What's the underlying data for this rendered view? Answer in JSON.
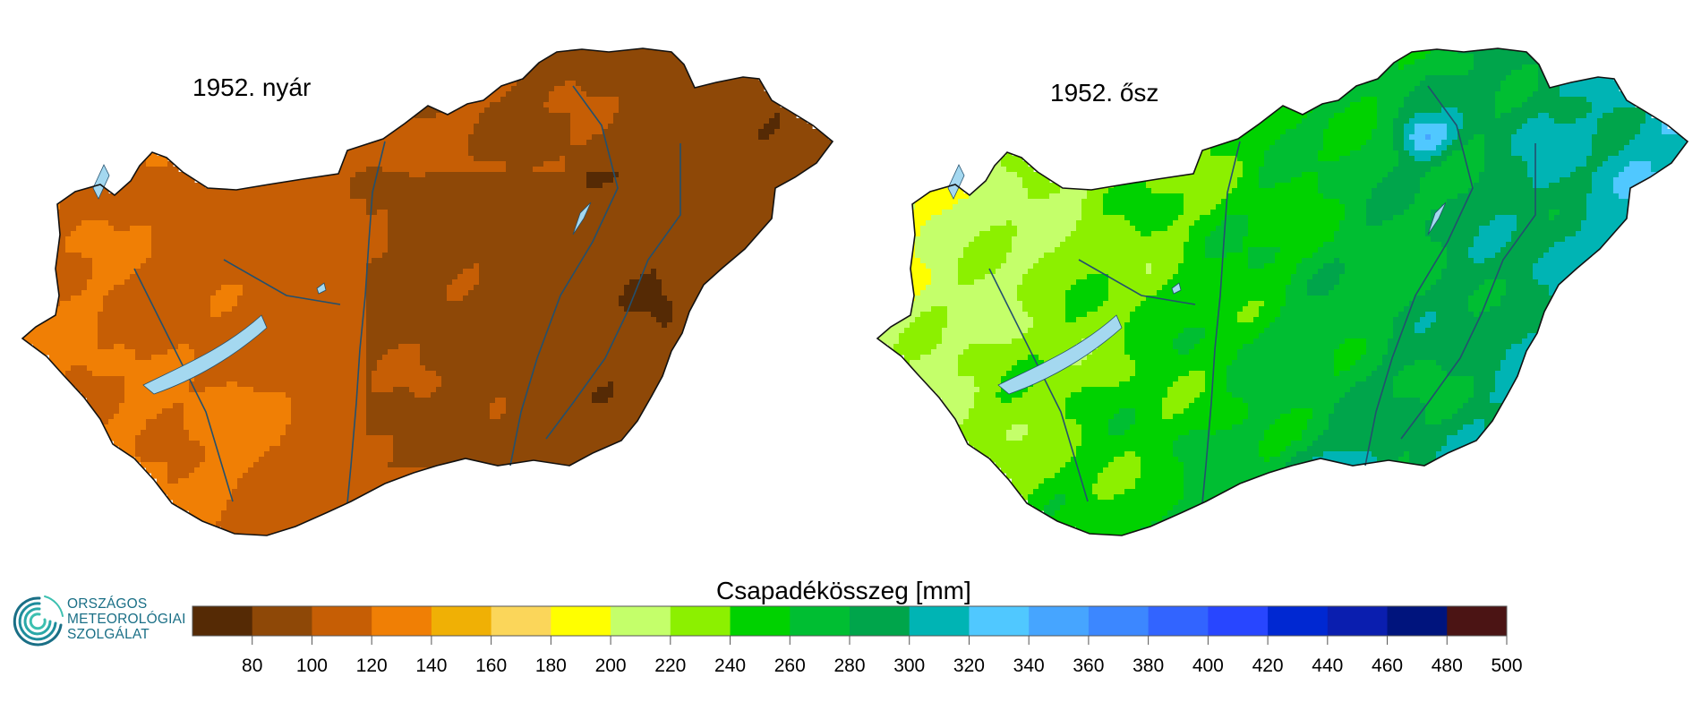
{
  "maps": [
    {
      "title": "1952. nyár",
      "season": "summer",
      "base_color": "#8e4807"
    },
    {
      "title": "1952. ősz",
      "season": "autumn",
      "base_color": "#00b332"
    }
  ],
  "legend": {
    "title": "Csapadékösszeg [mm]",
    "tick_labels": [
      "80",
      "100",
      "120",
      "140",
      "160",
      "180",
      "200",
      "220",
      "240",
      "260",
      "280",
      "300",
      "320",
      "340",
      "360",
      "380",
      "400",
      "420",
      "440",
      "460",
      "480",
      "500"
    ],
    "colors": [
      "#552a05",
      "#8e4807",
      "#c65e05",
      "#f07f05",
      "#f0b005",
      "#fbd65a",
      "#ffff00",
      "#c4ff6a",
      "#8cf000",
      "#00d200",
      "#00be32",
      "#00a54b",
      "#00b4b4",
      "#50c8ff",
      "#46a5ff",
      "#3c87ff",
      "#3264ff",
      "#2846ff",
      "#0028d2",
      "#0a1eaf",
      "#00147d",
      "#4b1414"
    ]
  },
  "water_color": "#a4d8f0",
  "river_color": "#23506e",
  "logo": {
    "lines": [
      "ORSZÁGOS",
      "METEOROLÓGIAI",
      "SZOLGÁLAT"
    ],
    "color": "#1a6f86"
  }
}
